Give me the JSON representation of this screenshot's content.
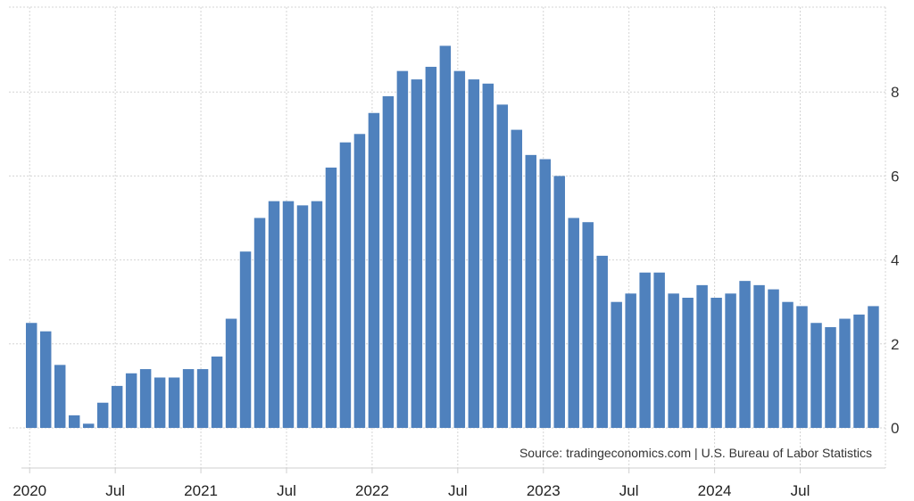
{
  "colors": {
    "bar": "#4f81bd",
    "grid": "#d4d4d4",
    "text": "#333333",
    "background": "#ffffff"
  },
  "source_label": "Source: tradingeconomics.com | U.S. Bureau of Labor Statistics",
  "chart_data": {
    "type": "bar",
    "title": "",
    "xlabel": "",
    "ylabel": "",
    "ylim": [
      0,
      9.5
    ],
    "y_ticks": [
      "0",
      "2",
      "4",
      "6",
      "8"
    ],
    "x_ticks": [
      "2020",
      "Jul",
      "2021",
      "Jul",
      "2022",
      "Jul",
      "2023",
      "Jul",
      "2024",
      "Jul"
    ],
    "grid": true,
    "y_axis_side": "right",
    "categories": [
      "2020-01",
      "2020-02",
      "2020-03",
      "2020-04",
      "2020-05",
      "2020-06",
      "2020-07",
      "2020-08",
      "2020-09",
      "2020-10",
      "2020-11",
      "2020-12",
      "2021-01",
      "2021-02",
      "2021-03",
      "2021-04",
      "2021-05",
      "2021-06",
      "2021-07",
      "2021-08",
      "2021-09",
      "2021-10",
      "2021-11",
      "2021-12",
      "2022-01",
      "2022-02",
      "2022-03",
      "2022-04",
      "2022-05",
      "2022-06",
      "2022-07",
      "2022-08",
      "2022-09",
      "2022-10",
      "2022-11",
      "2022-12",
      "2023-01",
      "2023-02",
      "2023-03",
      "2023-04",
      "2023-05",
      "2023-06",
      "2023-07",
      "2023-08",
      "2023-09",
      "2023-10",
      "2023-11",
      "2023-12",
      "2024-01",
      "2024-02",
      "2024-03",
      "2024-04",
      "2024-05",
      "2024-06",
      "2024-07",
      "2024-08",
      "2024-09",
      "2024-10",
      "2024-11",
      "2024-12"
    ],
    "values": [
      2.5,
      2.3,
      1.5,
      0.3,
      0.1,
      0.6,
      1.0,
      1.3,
      1.4,
      1.2,
      1.2,
      1.4,
      1.4,
      1.7,
      2.6,
      4.2,
      5.0,
      5.4,
      5.4,
      5.3,
      5.4,
      6.2,
      6.8,
      7.0,
      7.5,
      7.9,
      8.5,
      8.3,
      8.6,
      9.1,
      8.5,
      8.3,
      8.2,
      7.7,
      7.1,
      6.5,
      6.4,
      6.0,
      5.0,
      4.9,
      4.1,
      3.0,
      3.2,
      3.7,
      3.7,
      3.2,
      3.1,
      3.4,
      3.1,
      3.2,
      3.5,
      3.4,
      3.3,
      3.0,
      2.9,
      2.5,
      2.4,
      2.6,
      2.7,
      2.9
    ]
  }
}
